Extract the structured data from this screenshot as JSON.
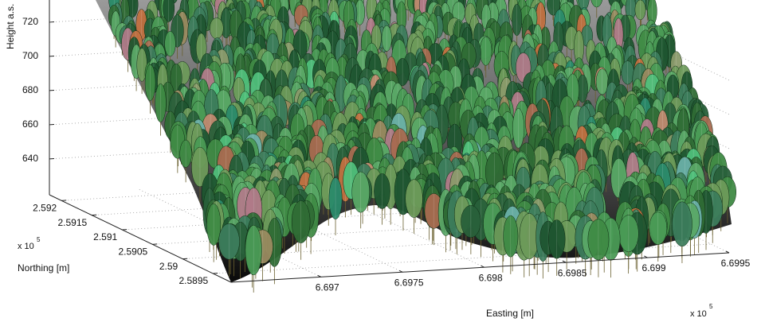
{
  "chart_data": {
    "type": "surface3d",
    "axis_labels": {
      "z": "Height a.s.",
      "y": "Northing [m]",
      "x": "Easting [m]"
    },
    "zlim": [
      619,
      733
    ],
    "zticks": [
      640,
      660,
      680,
      700,
      720
    ],
    "ylim": [
      2.5892,
      2.5922
    ],
    "yticks": [
      2.5895,
      2.59,
      2.5905,
      2.591,
      2.5915,
      2.592
    ],
    "xlim": [
      6.69645,
      6.6995
    ],
    "xticks": [
      6.697,
      6.6975,
      6.698,
      6.6985,
      6.699,
      6.6995
    ],
    "y_exponent": {
      "base": "x 10",
      "power": "5"
    },
    "x_exponent": {
      "base": "x 10",
      "power": "5"
    },
    "grid": true
  }
}
